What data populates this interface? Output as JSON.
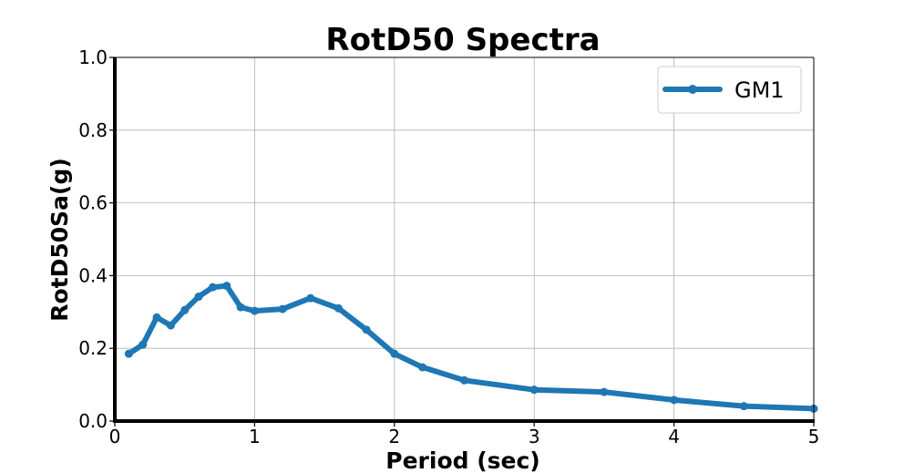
{
  "chart_data": {
    "type": "line",
    "title": "RotD50 Spectra",
    "xlabel": "Period (sec)",
    "ylabel": "RotD50Sa(g)",
    "xlim": [
      0,
      5
    ],
    "ylim": [
      0.0,
      1.0
    ],
    "xticks": [
      "0",
      "1",
      "2",
      "3",
      "4",
      "5"
    ],
    "yticks": [
      "0.0",
      "0.2",
      "0.4",
      "0.6",
      "0.8",
      "1.0"
    ],
    "grid": true,
    "legend_position": "top-right",
    "series": [
      {
        "name": "GM1",
        "color": "#1f77b4",
        "x": [
          0.1,
          0.2,
          0.3,
          0.4,
          0.5,
          0.6,
          0.7,
          0.8,
          0.9,
          1.0,
          1.2,
          1.4,
          1.6,
          1.8,
          2.0,
          2.2,
          2.5,
          3.0,
          3.5,
          4.0,
          4.5,
          5.0
        ],
        "y": [
          0.185,
          0.21,
          0.285,
          0.263,
          0.305,
          0.342,
          0.368,
          0.372,
          0.313,
          0.303,
          0.308,
          0.338,
          0.31,
          0.251,
          0.185,
          0.148,
          0.112,
          0.086,
          0.08,
          0.058,
          0.041,
          0.034
        ]
      }
    ]
  }
}
